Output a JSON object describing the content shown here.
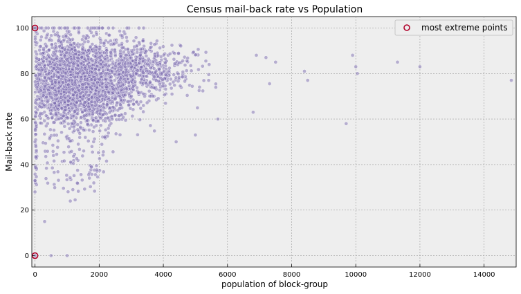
{
  "chart_data": {
    "type": "scatter",
    "title": "Census mail-back rate vs Population",
    "xlabel": "population of block-group",
    "ylabel": "Mail-back rate",
    "xlim": [
      -100,
      15000
    ],
    "ylim": [
      -5,
      105
    ],
    "xticks": [
      0,
      2000,
      4000,
      6000,
      8000,
      10000,
      12000,
      14000
    ],
    "yticks": [
      0,
      20,
      40,
      60,
      80,
      100
    ],
    "grid": true,
    "legend": {
      "position": "top-right"
    },
    "colors": {
      "points": "#7b6cb0",
      "point_edge": "#ffffff",
      "highlight": "#b0002a",
      "background": "#eeeeee"
    },
    "series": [
      {
        "name": "",
        "values_sample": [
          {
            "x": 300,
            "y": 15
          },
          {
            "x": 1100,
            "y": 24
          },
          {
            "x": 1250,
            "y": 24.5
          },
          {
            "x": 4400,
            "y": 50
          },
          {
            "x": 5000,
            "y": 53
          },
          {
            "x": 5700,
            "y": 60
          },
          {
            "x": 6800,
            "y": 63
          },
          {
            "x": 9700,
            "y": 58
          },
          {
            "x": 6900,
            "y": 88
          },
          {
            "x": 7200,
            "y": 87
          },
          {
            "x": 7500,
            "y": 85
          },
          {
            "x": 8400,
            "y": 81
          },
          {
            "x": 8500,
            "y": 77
          },
          {
            "x": 9900,
            "y": 88
          },
          {
            "x": 10000,
            "y": 83
          },
          {
            "x": 10050,
            "y": 80
          },
          {
            "x": 11300,
            "y": 85
          },
          {
            "x": 12000,
            "y": 83
          },
          {
            "x": 14850,
            "y": 77
          },
          {
            "x": 0,
            "y": 100
          },
          {
            "x": 0,
            "y": 0
          },
          {
            "x": 500,
            "y": 0
          },
          {
            "x": 1000,
            "y": 0
          },
          {
            "x": 0,
            "y": 50
          },
          {
            "x": 0,
            "y": 33
          },
          {
            "x": 0,
            "y": 28
          }
        ]
      },
      {
        "name": "most extreme points",
        "values": [
          {
            "x": 0,
            "y": 100
          },
          {
            "x": 0,
            "y": 0
          }
        ]
      }
    ]
  }
}
